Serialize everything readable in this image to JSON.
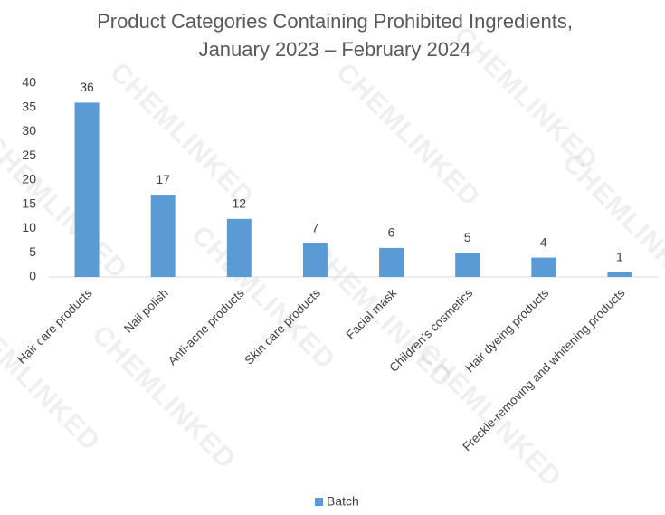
{
  "chart_data": {
    "type": "bar",
    "title": [
      "Product Categories Containing Prohibited Ingredients,",
      "January 2023 – February 2024"
    ],
    "categories": [
      "Hair care products",
      "Nail polish",
      "Anti-acne products",
      "Skin care products",
      "Facial mask",
      "Children's cosmetics",
      "Hair dyeing products",
      "Freckle-removing and whitening products"
    ],
    "series": [
      {
        "name": "Batch",
        "color": "#5b9bd5",
        "values": [
          36,
          17,
          12,
          7,
          6,
          5,
          4,
          1
        ]
      }
    ],
    "ylim": [
      0,
      40
    ],
    "yticks": [
      0,
      5,
      10,
      15,
      20,
      25,
      30,
      35,
      40
    ],
    "grid": false,
    "legend": "bottom",
    "watermark": "CHEMLINKED"
  }
}
